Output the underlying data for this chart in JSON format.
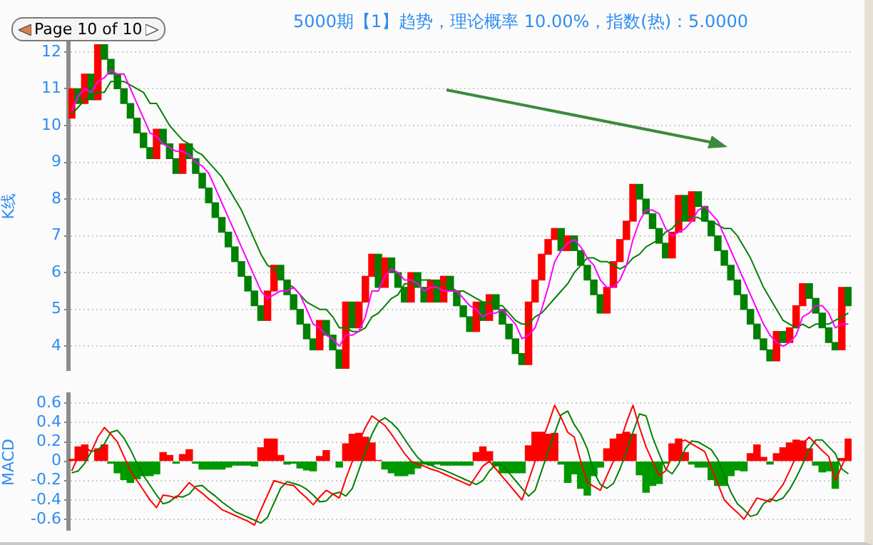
{
  "chart_data": [
    {
      "type": "candlestick",
      "title": "5000期【1】趋势，理论概率 10.00%，指数(热)：5.0000",
      "ylabel": "K线",
      "annotations": [
        "Page 10 of 10"
      ],
      "categories": [
        null,
        null,
        null,
        null,
        null,
        null,
        null,
        null,
        null,
        null,
        null,
        null,
        null,
        null,
        null,
        null,
        null,
        null,
        null,
        null,
        null,
        null,
        null,
        null,
        null,
        null,
        null,
        null,
        null,
        null,
        null,
        null,
        null,
        null,
        null,
        null,
        null,
        null,
        null,
        null,
        null,
        null,
        null,
        null,
        null,
        null,
        null,
        null,
        null,
        null,
        null,
        null,
        null,
        null,
        null,
        null,
        null,
        null,
        null,
        null,
        null,
        null,
        null,
        null,
        null,
        null,
        null,
        null,
        null,
        null,
        null,
        null,
        null,
        null,
        null,
        null,
        null,
        null,
        null,
        null,
        null,
        null,
        null,
        null,
        null,
        null,
        null,
        null,
        null,
        null,
        null,
        null,
        null,
        null,
        null,
        null,
        null,
        null,
        null,
        null,
        null,
        null,
        null,
        null,
        null,
        null,
        null,
        null,
        null,
        null,
        null,
        null,
        null,
        null,
        null,
        null,
        null,
        null,
        null,
        null
      ],
      "ohlc": [
        [
          10.2,
          11.0,
          10.2,
          11.0
        ],
        [
          11.0,
          11.0,
          10.6,
          10.6
        ],
        [
          10.6,
          11.4,
          10.6,
          11.4
        ],
        [
          11.4,
          11.4,
          10.7,
          10.7
        ],
        [
          10.7,
          12.2,
          10.7,
          12.2
        ],
        [
          12.2,
          12.2,
          11.8,
          11.8
        ],
        [
          11.8,
          11.8,
          11.4,
          11.4
        ],
        [
          11.4,
          11.4,
          11.0,
          11.0
        ],
        [
          11.0,
          11.0,
          10.6,
          10.6
        ],
        [
          10.6,
          10.6,
          10.2,
          10.2
        ],
        [
          10.2,
          10.2,
          9.8,
          9.8
        ],
        [
          9.8,
          9.8,
          9.4,
          9.4
        ],
        [
          9.4,
          9.4,
          9.1,
          9.1
        ],
        [
          9.1,
          9.9,
          9.1,
          9.9
        ],
        [
          9.9,
          9.9,
          9.5,
          9.5
        ],
        [
          9.5,
          9.5,
          9.1,
          9.1
        ],
        [
          9.1,
          9.1,
          8.7,
          8.7
        ],
        [
          8.7,
          9.5,
          8.7,
          9.5
        ],
        [
          9.5,
          9.5,
          9.1,
          9.1
        ],
        [
          9.1,
          9.1,
          8.7,
          8.7
        ],
        [
          8.7,
          8.7,
          8.3,
          8.3
        ],
        [
          8.3,
          8.3,
          7.9,
          7.9
        ],
        [
          7.9,
          7.9,
          7.5,
          7.5
        ],
        [
          7.5,
          7.5,
          7.1,
          7.1
        ],
        [
          7.1,
          7.1,
          6.7,
          6.7
        ],
        [
          6.7,
          6.7,
          6.3,
          6.3
        ],
        [
          6.3,
          6.3,
          5.9,
          5.9
        ],
        [
          5.9,
          5.9,
          5.5,
          5.5
        ],
        [
          5.5,
          5.5,
          5.1,
          5.1
        ],
        [
          5.1,
          5.1,
          4.7,
          4.7
        ],
        [
          4.7,
          5.5,
          4.7,
          5.5
        ],
        [
          5.5,
          6.2,
          5.5,
          6.2
        ],
        [
          6.2,
          6.2,
          5.8,
          5.8
        ],
        [
          5.8,
          5.8,
          5.4,
          5.4
        ],
        [
          5.4,
          5.4,
          5.0,
          5.0
        ],
        [
          5.0,
          5.0,
          4.6,
          4.6
        ],
        [
          4.6,
          4.6,
          4.2,
          4.2
        ],
        [
          4.2,
          4.2,
          3.9,
          3.9
        ],
        [
          3.9,
          4.7,
          3.9,
          4.7
        ],
        [
          4.7,
          4.7,
          4.3,
          4.3
        ],
        [
          4.3,
          4.3,
          3.9,
          3.9
        ],
        [
          3.9,
          3.9,
          3.4,
          3.4
        ],
        [
          3.4,
          5.2,
          3.4,
          5.2
        ],
        [
          5.2,
          5.2,
          4.5,
          4.5
        ],
        [
          4.5,
          5.2,
          4.5,
          5.2
        ],
        [
          5.2,
          5.9,
          5.2,
          5.9
        ],
        [
          5.9,
          6.5,
          5.9,
          6.5
        ],
        [
          6.5,
          6.5,
          5.6,
          5.6
        ],
        [
          5.6,
          6.4,
          5.6,
          6.4
        ],
        [
          6.4,
          6.4,
          6.0,
          6.0
        ],
        [
          6.0,
          6.0,
          5.6,
          5.6
        ],
        [
          5.6,
          5.6,
          5.2,
          5.2
        ],
        [
          5.2,
          6.0,
          5.2,
          6.0
        ],
        [
          6.0,
          6.0,
          5.6,
          5.6
        ],
        [
          5.6,
          5.6,
          5.2,
          5.2
        ],
        [
          5.2,
          5.8,
          5.2,
          5.8
        ],
        [
          5.8,
          5.8,
          5.2,
          5.2
        ],
        [
          5.2,
          5.9,
          5.2,
          5.9
        ],
        [
          5.9,
          5.9,
          5.5,
          5.5
        ],
        [
          5.5,
          5.5,
          5.1,
          5.1
        ],
        [
          5.1,
          5.1,
          4.8,
          4.8
        ],
        [
          4.8,
          4.8,
          4.4,
          4.4
        ],
        [
          4.4,
          5.2,
          4.4,
          5.2
        ],
        [
          5.2,
          5.2,
          4.7,
          4.7
        ],
        [
          4.7,
          5.4,
          4.7,
          5.4
        ],
        [
          5.4,
          5.4,
          5.0,
          5.0
        ],
        [
          5.0,
          5.0,
          4.6,
          4.6
        ],
        [
          4.6,
          4.6,
          4.2,
          4.2
        ],
        [
          4.2,
          4.2,
          3.8,
          3.8
        ],
        [
          3.8,
          3.8,
          3.5,
          3.5
        ],
        [
          3.5,
          5.2,
          3.5,
          5.2
        ],
        [
          5.2,
          5.8,
          5.2,
          5.8
        ],
        [
          5.8,
          6.5,
          5.8,
          6.5
        ],
        [
          6.5,
          6.9,
          6.5,
          6.9
        ],
        [
          6.9,
          7.2,
          6.9,
          7.2
        ],
        [
          7.2,
          7.2,
          6.6,
          6.6
        ],
        [
          6.6,
          7.0,
          6.6,
          7.0
        ],
        [
          7.0,
          7.0,
          6.6,
          6.6
        ],
        [
          6.6,
          6.6,
          6.2,
          6.2
        ],
        [
          6.2,
          6.2,
          5.8,
          5.8
        ],
        [
          5.8,
          5.8,
          5.4,
          5.4
        ],
        [
          5.4,
          5.4,
          4.9,
          4.9
        ],
        [
          4.9,
          5.6,
          4.9,
          5.6
        ],
        [
          5.6,
          6.3,
          5.6,
          6.3
        ],
        [
          6.3,
          6.9,
          6.3,
          6.9
        ],
        [
          6.9,
          7.4,
          6.9,
          7.4
        ],
        [
          7.4,
          8.4,
          7.4,
          8.4
        ],
        [
          8.4,
          8.4,
          8.0,
          8.0
        ],
        [
          8.0,
          8.0,
          7.6,
          7.6
        ],
        [
          7.6,
          7.6,
          7.2,
          7.2
        ],
        [
          7.2,
          7.2,
          6.8,
          6.8
        ],
        [
          6.8,
          6.8,
          6.4,
          6.4
        ],
        [
          6.4,
          7.1,
          6.4,
          7.1
        ],
        [
          7.1,
          8.1,
          7.1,
          8.1
        ],
        [
          8.1,
          8.1,
          7.4,
          7.4
        ],
        [
          7.4,
          8.2,
          7.4,
          8.2
        ],
        [
          8.2,
          8.2,
          7.8,
          7.8
        ],
        [
          7.8,
          7.8,
          7.4,
          7.4
        ],
        [
          7.4,
          7.4,
          7.0,
          7.0
        ],
        [
          7.0,
          7.0,
          6.6,
          6.6
        ],
        [
          6.6,
          6.6,
          6.2,
          6.2
        ],
        [
          6.2,
          6.2,
          5.8,
          5.8
        ],
        [
          5.8,
          5.8,
          5.4,
          5.4
        ],
        [
          5.4,
          5.4,
          5.0,
          5.0
        ],
        [
          5.0,
          5.0,
          4.6,
          4.6
        ],
        [
          4.6,
          4.6,
          4.2,
          4.2
        ],
        [
          4.2,
          4.2,
          3.9,
          3.9
        ],
        [
          3.9,
          3.9,
          3.6,
          3.6
        ],
        [
          3.6,
          4.4,
          3.6,
          4.4
        ],
        [
          4.4,
          4.4,
          4.1,
          4.1
        ],
        [
          4.1,
          4.5,
          4.1,
          4.5
        ],
        [
          4.5,
          5.1,
          4.5,
          5.1
        ],
        [
          5.1,
          5.7,
          5.1,
          5.7
        ],
        [
          5.7,
          5.7,
          5.3,
          5.3
        ],
        [
          5.3,
          5.3,
          4.9,
          4.9
        ],
        [
          4.9,
          4.9,
          4.5,
          4.5
        ],
        [
          4.5,
          4.5,
          4.1,
          4.1
        ],
        [
          4.1,
          4.1,
          3.9,
          3.9
        ],
        [
          3.9,
          5.6,
          3.9,
          5.6
        ],
        [
          5.6,
          5.6,
          5.1,
          5.1
        ]
      ],
      "colors": [
        "#ff0000",
        "#008000",
        "#ff0000",
        "#008000",
        "#ff0000",
        "#008000",
        "#008000",
        "#008000",
        "#008000",
        "#008000",
        "#008000",
        "#008000",
        "#008000",
        "#ff0000",
        "#008000",
        "#008000",
        "#008000",
        "#ff0000",
        "#008000",
        "#008000",
        "#008000",
        "#008000",
        "#008000",
        "#008000",
        "#008000",
        "#008000",
        "#008000",
        "#008000",
        "#008000",
        "#008000",
        "#ff0000",
        "#ff0000",
        "#008000",
        "#008000",
        "#008000",
        "#008000",
        "#008000",
        "#008000",
        "#ff0000",
        "#008000",
        "#008000",
        "#008000",
        "#ff0000",
        "#008000",
        "#ff0000",
        "#ff0000",
        "#ff0000",
        "#008000",
        "#ff0000",
        "#008000",
        "#008000",
        "#008000",
        "#ff0000",
        "#008000",
        "#008000",
        "#ff0000",
        "#008000",
        "#ff0000",
        "#008000",
        "#008000",
        "#008000",
        "#008000",
        "#ff0000",
        "#008000",
        "#ff0000",
        "#008000",
        "#008000",
        "#008000",
        "#008000",
        "#008000",
        "#ff0000",
        "#ff0000",
        "#ff0000",
        "#ff0000",
        "#ff0000",
        "#008000",
        "#ff0000",
        "#008000",
        "#008000",
        "#008000",
        "#008000",
        "#008000",
        "#ff0000",
        "#ff0000",
        "#ff0000",
        "#ff0000",
        "#ff0000",
        "#008000",
        "#008000",
        "#008000",
        "#008000",
        "#008000",
        "#ff0000",
        "#ff0000",
        "#008000",
        "#ff0000",
        "#008000",
        "#008000",
        "#008000",
        "#008000",
        "#008000",
        "#008000",
        "#008000",
        "#008000",
        "#008000",
        "#008000",
        "#008000",
        "#008000",
        "#ff0000",
        "#008000",
        "#ff0000",
        "#ff0000",
        "#ff0000",
        "#008000",
        "#008000",
        "#008000",
        "#008000",
        "#008000",
        "#ff0000",
        "#008000"
      ],
      "series": [
        {
          "type": "line",
          "color": "#ff00ff",
          "values": [
            10.4,
            10.8,
            11.0,
            10.9,
            11.2,
            11.3,
            11.5,
            11.4,
            11.4,
            11.0,
            10.6,
            10.2,
            9.8,
            9.7,
            9.5,
            9.4,
            9.3,
            9.3,
            9.2,
            9.0,
            8.9,
            8.7,
            8.3,
            7.9,
            7.5,
            7.1,
            6.7,
            6.3,
            5.9,
            5.5,
            5.3,
            5.4,
            5.5,
            5.5,
            5.6,
            5.4,
            5.0,
            4.6,
            4.5,
            4.3,
            4.2,
            4.0,
            4.3,
            4.3,
            4.4,
            4.8,
            5.5,
            5.5,
            5.9,
            6.1,
            6.0,
            5.8,
            5.8,
            5.7,
            5.5,
            5.6,
            5.6,
            5.5,
            5.5,
            5.5,
            5.3,
            5.1,
            5.0,
            4.8,
            4.9,
            4.9,
            5.0,
            4.8,
            4.6,
            4.2,
            4.3,
            4.5,
            5.0,
            5.6,
            6.3,
            6.6,
            6.8,
            6.9,
            6.7,
            6.4,
            6.2,
            5.8,
            5.6,
            5.6,
            5.8,
            6.2,
            6.9,
            7.4,
            7.7,
            7.7,
            7.6,
            7.2,
            7.0,
            7.1,
            7.2,
            7.4,
            7.7,
            7.8,
            7.6,
            7.4,
            7.0,
            6.6,
            6.2,
            5.8,
            5.4,
            5.0,
            4.6,
            4.3,
            4.1,
            4.0,
            4.1,
            4.3,
            4.8,
            4.9,
            5.1,
            5.1,
            4.9,
            4.5,
            4.6,
            4.6
          ]
        },
        {
          "type": "line",
          "color": "#008000",
          "values": [
            10.3,
            10.5,
            10.7,
            10.8,
            10.9,
            10.9,
            11.2,
            11.2,
            11.2,
            11.1,
            11.0,
            10.9,
            10.6,
            10.6,
            10.3,
            10.0,
            9.8,
            9.6,
            9.5,
            9.3,
            9.2,
            9.0,
            8.8,
            8.6,
            8.3,
            8.0,
            7.7,
            7.3,
            6.9,
            6.5,
            6.2,
            6.1,
            5.9,
            5.7,
            5.6,
            5.4,
            5.2,
            5.1,
            5.0,
            5.0,
            4.8,
            4.5,
            4.5,
            4.4,
            4.4,
            4.5,
            4.8,
            4.9,
            5.1,
            5.3,
            5.4,
            5.7,
            5.7,
            5.8,
            5.8,
            5.8,
            5.7,
            5.7,
            5.6,
            5.5,
            5.5,
            5.4,
            5.3,
            5.2,
            5.2,
            5.1,
            5.1,
            4.9,
            4.7,
            4.6,
            4.6,
            4.8,
            4.9,
            5.1,
            5.3,
            5.5,
            5.7,
            6.0,
            6.2,
            6.4,
            6.4,
            6.3,
            6.3,
            6.2,
            6.1,
            6.2,
            6.4,
            6.5,
            6.7,
            6.8,
            6.9,
            7.1,
            7.2,
            7.4,
            7.5,
            7.5,
            7.5,
            7.4,
            7.4,
            7.3,
            7.2,
            7.2,
            7.0,
            6.7,
            6.4,
            6.0,
            5.6,
            5.3,
            5.0,
            4.7,
            4.6,
            4.5,
            4.6,
            4.5,
            4.6,
            4.6,
            4.6,
            4.7,
            4.8,
            4.9
          ]
        }
      ],
      "ylim": [
        3.35,
        12.25
      ],
      "yticks": [
        4,
        5,
        6,
        7,
        8,
        9,
        10,
        11,
        12
      ],
      "grid": "y",
      "tick_labels": "y",
      "marker": "none",
      "line_style": "solid"
    },
    {
      "type": "line",
      "ylabel": "MACD",
      "categories": [
        null,
        null,
        null,
        null,
        null,
        null,
        null,
        null,
        null,
        null,
        null,
        null,
        null,
        null,
        null,
        null,
        null,
        null,
        null,
        null,
        null,
        null,
        null,
        null,
        null,
        null,
        null,
        null,
        null,
        null,
        null,
        null,
        null,
        null,
        null,
        null,
        null,
        null,
        null,
        null,
        null,
        null,
        null,
        null,
        null,
        null,
        null,
        null,
        null,
        null,
        null,
        null,
        null,
        null,
        null,
        null,
        null,
        null,
        null,
        null,
        null,
        null,
        null,
        null,
        null,
        null,
        null,
        null,
        null,
        null,
        null,
        null,
        null,
        null,
        null,
        null,
        null,
        null,
        null,
        null,
        null,
        null,
        null,
        null,
        null,
        null,
        null,
        null,
        null,
        null,
        null,
        null,
        null,
        null,
        null,
        null,
        null,
        null,
        null,
        null,
        null,
        null,
        null,
        null,
        null,
        null,
        null,
        null,
        null,
        null,
        null,
        null,
        null,
        null,
        null,
        null,
        null,
        null,
        null,
        null
      ],
      "series": [
        {
          "type": "bar",
          "color": "#ff0000",
          "values": [
            0.02,
            0.15,
            0.17,
            null,
            0.13,
            0.17,
            null,
            null,
            null,
            null,
            null,
            null,
            null,
            null,
            0.09,
            0.06,
            null,
            0.07,
            0.12,
            null,
            null,
            null,
            null,
            null,
            null,
            null,
            null,
            null,
            null,
            0.14,
            0.23,
            0.23,
            0.06,
            null,
            null,
            null,
            null,
            null,
            0.05,
            0.11,
            null,
            null,
            0.18,
            0.28,
            0.29,
            0.25,
            0.19,
            0.01,
            null,
            null,
            null,
            null,
            null,
            null,
            null,
            null,
            null,
            null,
            null,
            null,
            null,
            null,
            0.09,
            0.15,
            0.1,
            null,
            null,
            null,
            null,
            null,
            0.16,
            0.3,
            0.3,
            0.28,
            0.29,
            null,
            null,
            null,
            null,
            null,
            null,
            null,
            0.13,
            0.23,
            0.28,
            0.3,
            0.28,
            null,
            null,
            null,
            null,
            null,
            0.18,
            0.23,
            0.09,
            null,
            null,
            null,
            null,
            null,
            null,
            null,
            null,
            null,
            0.08,
            0.17,
            0.04,
            null,
            0.08,
            0.14,
            0.19,
            0.22,
            0.21,
            0.13,
            null,
            null,
            null,
            null,
            0.03,
            0.23
          ]
        },
        {
          "type": "bar",
          "color": "#009900",
          "values": [
            null,
            null,
            null,
            null,
            null,
            null,
            -0.02,
            -0.12,
            -0.19,
            -0.22,
            -0.18,
            -0.15,
            -0.15,
            -0.13,
            null,
            null,
            -0.02,
            null,
            null,
            -0.02,
            -0.08,
            -0.08,
            -0.08,
            -0.08,
            -0.06,
            -0.04,
            -0.04,
            -0.04,
            -0.05,
            null,
            null,
            null,
            null,
            -0.03,
            -0.02,
            -0.07,
            -0.09,
            -0.1,
            null,
            null,
            null,
            -0.06,
            null,
            null,
            null,
            null,
            null,
            null,
            -0.08,
            -0.12,
            -0.15,
            -0.15,
            -0.13,
            -0.07,
            -0.03,
            -0.04,
            -0.03,
            -0.04,
            -0.04,
            -0.04,
            -0.04,
            -0.04,
            null,
            null,
            null,
            -0.05,
            -0.12,
            -0.12,
            -0.12,
            -0.12,
            null,
            null,
            null,
            null,
            null,
            -0.03,
            -0.22,
            -0.13,
            -0.28,
            -0.35,
            -0.15,
            -0.06,
            null,
            null,
            null,
            null,
            null,
            -0.14,
            -0.32,
            -0.25,
            -0.23,
            -0.02,
            null,
            null,
            null,
            -0.03,
            -0.06,
            -0.06,
            -0.19,
            -0.25,
            -0.25,
            -0.15,
            -0.09,
            -0.1,
            null,
            null,
            null,
            -0.03,
            null,
            null,
            null,
            null,
            null,
            null,
            -0.04,
            -0.11,
            -0.1,
            -0.28,
            null,
            null
          ]
        },
        {
          "color": "#ff0000",
          "values": [
            -0.1,
            0.05,
            0.15,
            0.1,
            0.25,
            0.35,
            0.28,
            0.2,
            0.05,
            -0.1,
            -0.2,
            -0.3,
            -0.4,
            -0.48,
            -0.35,
            -0.36,
            -0.38,
            -0.3,
            -0.22,
            -0.28,
            -0.33,
            -0.39,
            -0.44,
            -0.5,
            -0.53,
            -0.56,
            -0.59,
            -0.62,
            -0.66,
            -0.5,
            -0.35,
            -0.2,
            -0.22,
            -0.24,
            -0.25,
            -0.32,
            -0.38,
            -0.45,
            -0.37,
            -0.3,
            -0.34,
            -0.38,
            -0.18,
            0.0,
            0.2,
            0.35,
            0.47,
            0.42,
            0.37,
            0.28,
            0.18,
            0.08,
            0.0,
            -0.03,
            -0.05,
            -0.08,
            -0.1,
            -0.13,
            -0.16,
            -0.19,
            -0.22,
            -0.25,
            -0.15,
            -0.05,
            0.0,
            -0.08,
            -0.16,
            -0.24,
            -0.32,
            -0.4,
            -0.2,
            0.0,
            0.2,
            0.38,
            0.58,
            0.45,
            0.3,
            0.25,
            0.0,
            -0.22,
            -0.26,
            -0.3,
            -0.15,
            0.0,
            0.2,
            0.4,
            0.58,
            0.35,
            0.15,
            0.0,
            -0.15,
            -0.1,
            0.05,
            0.2,
            0.22,
            0.18,
            0.14,
            0.1,
            -0.07,
            -0.23,
            -0.4,
            -0.47,
            -0.53,
            -0.6,
            -0.49,
            -0.38,
            -0.4,
            -0.42,
            -0.33,
            -0.24,
            -0.1,
            0.05,
            0.18,
            0.25,
            0.18,
            0.11,
            0.05,
            -0.2,
            -0.05,
            0.1
          ]
        },
        {
          "color": "#008000",
          "values": [
            -0.12,
            -0.1,
            -0.02,
            0.1,
            0.12,
            0.18,
            0.3,
            0.32,
            0.24,
            0.12,
            -0.02,
            -0.15,
            -0.25,
            -0.35,
            -0.44,
            -0.42,
            -0.36,
            -0.37,
            -0.34,
            -0.26,
            -0.25,
            -0.31,
            -0.36,
            -0.42,
            -0.47,
            -0.52,
            -0.55,
            -0.58,
            -0.61,
            -0.64,
            -0.58,
            -0.43,
            -0.28,
            -0.21,
            -0.23,
            -0.25,
            -0.29,
            -0.35,
            -0.42,
            -0.41,
            -0.34,
            -0.32,
            -0.36,
            -0.28,
            -0.09,
            0.1,
            0.28,
            0.41,
            0.45,
            0.4,
            0.33,
            0.23,
            0.13,
            0.04,
            -0.02,
            -0.04,
            -0.07,
            -0.09,
            -0.12,
            -0.15,
            -0.18,
            -0.21,
            -0.24,
            -0.2,
            -0.1,
            -0.03,
            -0.04,
            -0.12,
            -0.2,
            -0.28,
            -0.36,
            -0.3,
            -0.1,
            0.1,
            0.29,
            0.48,
            0.52,
            0.38,
            0.28,
            0.13,
            -0.11,
            -0.24,
            -0.28,
            -0.23,
            -0.08,
            0.1,
            0.3,
            0.49,
            0.47,
            0.25,
            0.08,
            -0.08,
            -0.13,
            -0.03,
            0.13,
            0.21,
            0.2,
            0.16,
            0.12,
            0.02,
            -0.15,
            -0.32,
            -0.44,
            -0.5,
            -0.57,
            -0.55,
            -0.44,
            -0.39,
            -0.41,
            -0.38,
            -0.29,
            -0.17,
            -0.03,
            0.12,
            0.22,
            0.22,
            0.15,
            0.08,
            -0.08,
            -0.13
          ]
        }
      ],
      "ylim": [
        -0.71,
        0.69
      ],
      "yticks": [
        -0.6,
        -0.4,
        -0.2,
        0,
        0.2,
        0.4,
        0.6
      ],
      "grid": "y",
      "tick_labels": "y",
      "marker": "none",
      "line_style": "solid"
    }
  ]
}
